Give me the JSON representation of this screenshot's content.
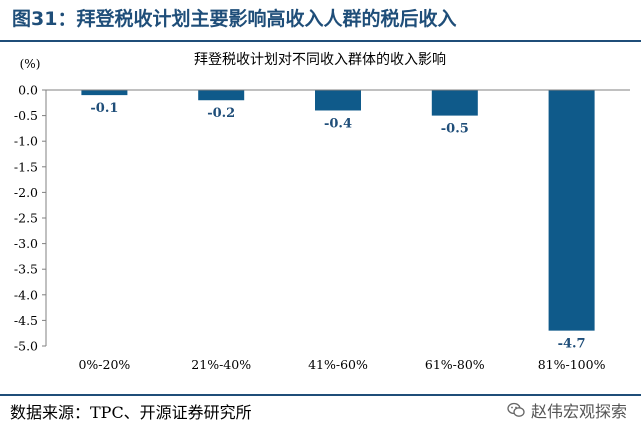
{
  "figure_title": "图31：拜登税收计划主要影响高收入人群的税后收入",
  "source": "数据来源：TPC、开源证券研究所",
  "watermark": "赵伟宏观探索",
  "watermark_icon": "wechat-icon",
  "colors": {
    "bar": "#0f5a8a",
    "accent": "#1f4e79",
    "label": "#1f4e79"
  },
  "chart_data": {
    "type": "bar",
    "title": "拜登税收计划对不同收入群体的收入影响",
    "ylabel": "(%)",
    "xlabel": "",
    "categories": [
      "0%-20%",
      "21%-40%",
      "41%-60%",
      "61%-80%",
      "81%-100%"
    ],
    "values": [
      -0.1,
      -0.2,
      -0.4,
      -0.5,
      -4.7
    ],
    "data_labels": [
      "-0.1",
      "-0.2",
      "-0.4",
      "-0.5",
      "-4.7"
    ],
    "ylim": [
      -5.0,
      0.0
    ],
    "yticks": [
      0.0,
      -0.5,
      -1.0,
      -1.5,
      -2.0,
      -2.5,
      -3.0,
      -3.5,
      -4.0,
      -4.5,
      -5.0
    ],
    "ytick_labels": [
      "0.0",
      "-0.5",
      "-1.0",
      "-1.5",
      "-2.0",
      "-2.5",
      "-3.0",
      "-3.5",
      "-4.0",
      "-4.5",
      "-5.0"
    ],
    "grid": false,
    "legend": "none"
  }
}
